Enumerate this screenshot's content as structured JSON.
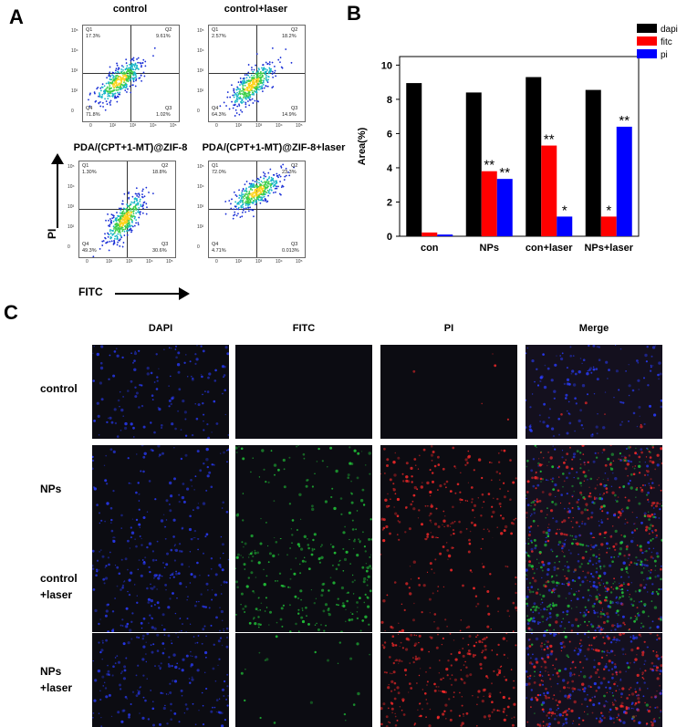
{
  "panels": {
    "a": "A",
    "b": "B",
    "c": "C"
  },
  "flow": {
    "x_axis": "FITC",
    "y_axis": "PI",
    "quadrant_labels": [
      "Q1",
      "Q2",
      "Q3",
      "Q4"
    ],
    "plots": [
      {
        "title": "control",
        "q1": "17.3%",
        "q2": "9.61%",
        "q3": "1.02%",
        "q4": "71.8%"
      },
      {
        "title": "control+laser",
        "q1": "2.57%",
        "q2": "18.2%",
        "q3": "14.9%",
        "q4": "64.3%"
      },
      {
        "title": "PDA/(CPT+1-MT)@ZIF-8",
        "q1": "1.30%",
        "q2": "18.8%",
        "q3": "30.6%",
        "q4": "49.3%"
      },
      {
        "title": "PDA/(CPT+1-MT)@ZIF-8+laser",
        "q1": "72.0%",
        "q2": "23.3%",
        "q3": "0.013%",
        "q4": "4.71%"
      }
    ],
    "x_ticks": [
      "0",
      "10²",
      "10³",
      "10⁴",
      "10⁵"
    ],
    "y_ticks": [
      "10⁵",
      "10⁴",
      "10³",
      "10²",
      "0"
    ]
  },
  "chart_data": {
    "type": "bar",
    "ylabel": "Area(%)",
    "ylim": [
      0,
      10.5
    ],
    "yticks": [
      0,
      2,
      4,
      6,
      8,
      10
    ],
    "categories": [
      "con",
      "NPs",
      "con+laser",
      "NPs+laser"
    ],
    "legend_position": "top-right",
    "series": [
      {
        "name": "dapi",
        "color": "#000000",
        "values": [
          8.95,
          8.4,
          9.3,
          8.55
        ],
        "marks": [
          "",
          "",
          "",
          ""
        ]
      },
      {
        "name": "fitc",
        "color": "#ff0000",
        "values": [
          0.22,
          3.8,
          5.3,
          1.15
        ],
        "marks": [
          "",
          "**",
          "**",
          "*"
        ]
      },
      {
        "name": "pi",
        "color": "#0000ff",
        "values": [
          0.1,
          3.35,
          1.15,
          6.4
        ],
        "marks": [
          "",
          "**",
          "*",
          "**"
        ]
      }
    ]
  },
  "micrographs": {
    "columns": [
      "DAPI",
      "FITC",
      "PI",
      "Merge"
    ],
    "rows": [
      {
        "line1": "control",
        "line2": ""
      },
      {
        "line1": "NPs",
        "line2": ""
      },
      {
        "line1": "control",
        "line2": "+laser"
      },
      {
        "line1": "NPs",
        "line2": "+laser"
      }
    ],
    "palette": {
      "dapi": "#2a3cff",
      "fitc": "#22c93a",
      "pi": "#ff2a2a",
      "background": "#0c0c12"
    },
    "intensity": [
      {
        "dapi": 0.55,
        "fitc": 0.0,
        "pi": 0.02
      },
      {
        "dapi": 0.45,
        "fitc": 0.35,
        "pi": 0.75
      },
      {
        "dapi": 0.8,
        "fitc": 0.85,
        "pi": 0.35
      },
      {
        "dapi": 0.75,
        "fitc": 0.08,
        "pi": 0.95
      }
    ]
  }
}
